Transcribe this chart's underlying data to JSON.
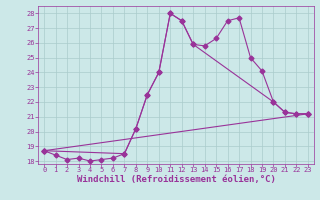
{
  "xlabel": "Windchill (Refroidissement éolien,°C)",
  "bg_color": "#cce8e8",
  "grid_color": "#aacccc",
  "line_color": "#993399",
  "xlim": [
    -0.5,
    23.5
  ],
  "ylim": [
    17.8,
    28.5
  ],
  "yticks": [
    18,
    19,
    20,
    21,
    22,
    23,
    24,
    25,
    26,
    27,
    28
  ],
  "xticks": [
    0,
    1,
    2,
    3,
    4,
    5,
    6,
    7,
    8,
    9,
    10,
    11,
    12,
    13,
    14,
    15,
    16,
    17,
    18,
    19,
    20,
    21,
    22,
    23
  ],
  "line1_x": [
    0,
    1,
    2,
    3,
    4,
    5,
    6,
    7,
    8,
    9,
    10,
    11,
    12,
    13,
    14,
    15,
    16,
    17,
    18,
    19,
    20,
    21,
    22,
    23
  ],
  "line1_y": [
    18.7,
    18.4,
    18.1,
    18.2,
    18.0,
    18.1,
    18.2,
    18.5,
    20.2,
    22.5,
    24.0,
    28.0,
    27.5,
    25.9,
    25.8,
    26.3,
    27.5,
    27.7,
    25.0,
    24.1,
    22.0,
    21.3,
    21.2,
    21.2
  ],
  "line2_x": [
    0,
    7,
    8,
    9,
    10,
    11,
    12,
    13,
    20,
    21,
    22,
    23
  ],
  "line2_y": [
    18.7,
    18.5,
    20.2,
    22.5,
    24.0,
    28.0,
    27.5,
    25.9,
    22.0,
    21.3,
    21.2,
    21.2
  ],
  "line3_x": [
    0,
    23
  ],
  "line3_y": [
    18.7,
    21.2
  ],
  "markersize": 2.5,
  "linewidth": 0.8,
  "tick_fontsize": 5.0,
  "xlabel_fontsize": 6.5
}
